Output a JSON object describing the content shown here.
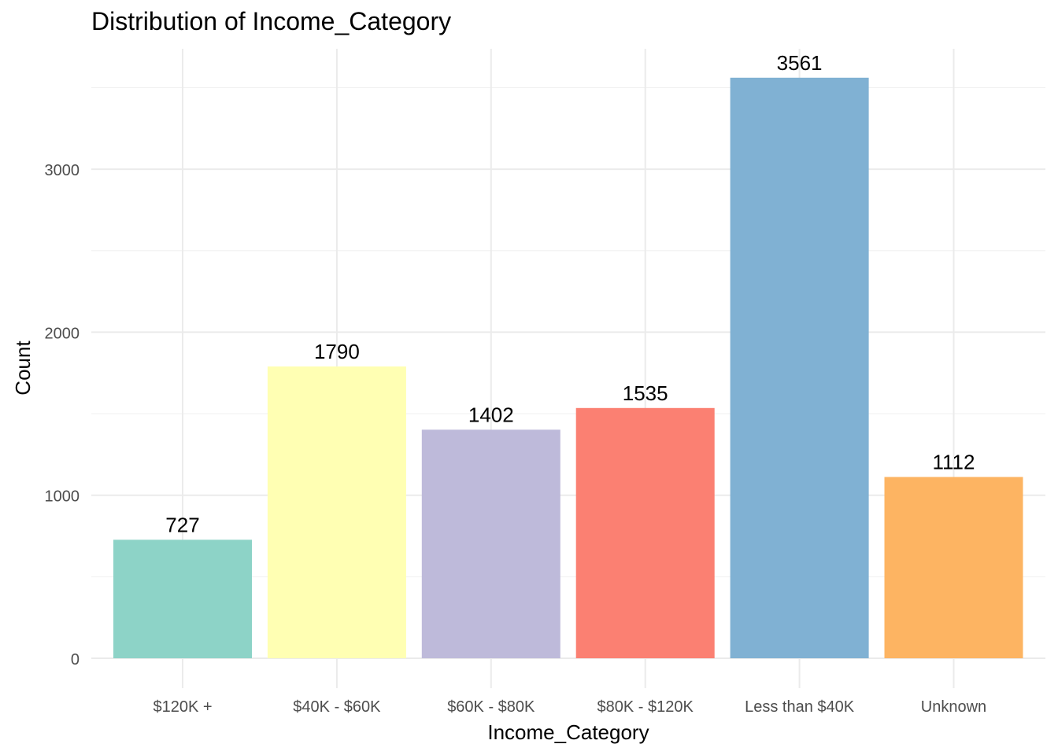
{
  "chart_data": {
    "type": "bar",
    "title": "Distribution of Income_Category",
    "xlabel": "Income_Category",
    "ylabel": "Count",
    "categories": [
      "$120K +",
      "$40K - $60K",
      "$60K - $80K",
      "$80K - $120K",
      "Less than $40K",
      "Unknown"
    ],
    "values": [
      727,
      1790,
      1402,
      1535,
      3561,
      1112
    ],
    "data_labels": [
      "727",
      "1790",
      "1402",
      "1535",
      "3561",
      "1112"
    ],
    "colors": [
      "#8DD3C7",
      "#FFFFB3",
      "#BEBADA",
      "#FB8072",
      "#80B1D3",
      "#FDB462"
    ],
    "ylim": [
      0,
      3800
    ],
    "y_ticks": [
      0,
      1000,
      2000,
      3000
    ],
    "y_tick_labels": [
      "0",
      "1000",
      "2000",
      "3000"
    ],
    "grid": true,
    "legend": "none",
    "theme": "minimal"
  }
}
